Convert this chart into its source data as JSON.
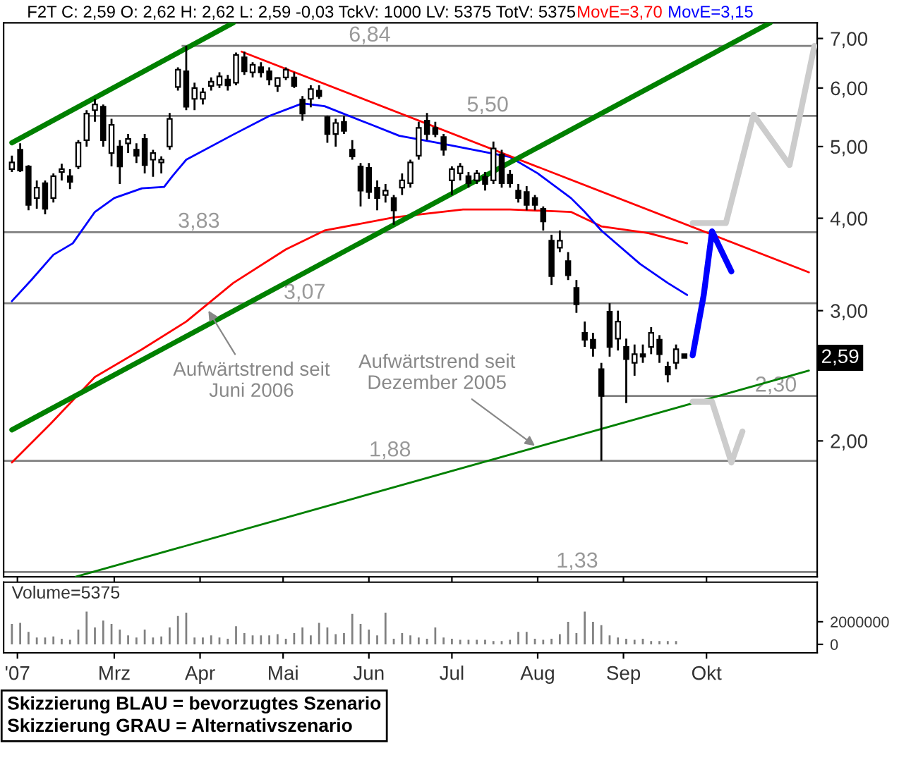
{
  "chart_data": [
    {
      "type": "candlestick",
      "title": "F2T C: 2,59 O: 2,62 H: 2,62 L: 2,59 -0,03 TckV: 1000 LV: 5375 TotV: 5375",
      "x": [
        "2007-01-23",
        "2007-01-26",
        "2007-01-29",
        "2007-02-01",
        "2007-02-04",
        "2007-02-07",
        "2007-02-10",
        "2007-02-13",
        "2007-02-16",
        "2007-02-19",
        "2007-02-22",
        "2007-02-25",
        "2007-02-28",
        "2007-03-03",
        "2007-03-06",
        "2007-03-09",
        "2007-03-12",
        "2007-03-15",
        "2007-03-18",
        "2007-03-21",
        "2007-03-24",
        "2007-03-27",
        "2007-03-30",
        "2007-04-02",
        "2007-04-05",
        "2007-04-08",
        "2007-04-11",
        "2007-04-14",
        "2007-04-17",
        "2007-04-20",
        "2007-04-23",
        "2007-04-26",
        "2007-04-29",
        "2007-05-02",
        "2007-05-05",
        "2007-05-08",
        "2007-05-11",
        "2007-05-14",
        "2007-05-17",
        "2007-05-20",
        "2007-05-23",
        "2007-05-26",
        "2007-05-29",
        "2007-06-01",
        "2007-06-04",
        "2007-06-07",
        "2007-06-10",
        "2007-06-13",
        "2007-06-16",
        "2007-06-19",
        "2007-06-22",
        "2007-06-25",
        "2007-06-28",
        "2007-07-01",
        "2007-07-04",
        "2007-07-07",
        "2007-07-10",
        "2007-07-13",
        "2007-07-16",
        "2007-07-19",
        "2007-07-22",
        "2007-07-25",
        "2007-07-28",
        "2007-07-31",
        "2007-08-03",
        "2007-08-06",
        "2007-08-09",
        "2007-08-12",
        "2007-08-15",
        "2007-08-18",
        "2007-08-21",
        "2007-08-24",
        "2007-08-27",
        "2007-08-30",
        "2007-09-02",
        "2007-09-05",
        "2007-09-08",
        "2007-09-11",
        "2007-09-14",
        "2007-09-17",
        "2007-09-20",
        "2007-09-23"
      ],
      "ohlc": [
        [
          4.66,
          4.86,
          4.62,
          4.76
        ],
        [
          4.95,
          5.05,
          4.62,
          4.64
        ],
        [
          4.7,
          4.72,
          4.1,
          4.17
        ],
        [
          4.26,
          4.5,
          4.12,
          4.4
        ],
        [
          4.46,
          4.5,
          4.05,
          4.12
        ],
        [
          4.26,
          4.6,
          4.2,
          4.56
        ],
        [
          4.62,
          4.74,
          4.5,
          4.66
        ],
        [
          4.56,
          4.66,
          4.38,
          4.48
        ],
        [
          4.7,
          5.1,
          4.66,
          5.06
        ],
        [
          5.1,
          5.6,
          5.0,
          5.54
        ],
        [
          5.6,
          5.8,
          5.4,
          5.7
        ],
        [
          5.66,
          5.7,
          5.0,
          5.1
        ],
        [
          4.9,
          5.45,
          4.7,
          5.35
        ],
        [
          5.0,
          5.1,
          4.45,
          4.7
        ],
        [
          5.05,
          5.2,
          4.9,
          5.12
        ],
        [
          4.95,
          5.05,
          4.75,
          4.86
        ],
        [
          5.12,
          5.2,
          4.6,
          4.72
        ],
        [
          4.8,
          4.95,
          4.55,
          4.9
        ],
        [
          4.76,
          4.85,
          4.6,
          4.8
        ],
        [
          5.0,
          5.55,
          4.95,
          5.45
        ],
        [
          6.02,
          6.4,
          5.95,
          6.35
        ],
        [
          6.32,
          6.84,
          5.6,
          5.66
        ],
        [
          5.8,
          6.1,
          5.6,
          6.0
        ],
        [
          5.8,
          6.0,
          5.7,
          5.92
        ],
        [
          6.04,
          6.2,
          5.95,
          6.12
        ],
        [
          6.06,
          6.3,
          6.0,
          6.22
        ],
        [
          6.16,
          6.25,
          5.95,
          6.05
        ],
        [
          6.1,
          6.7,
          6.05,
          6.65
        ],
        [
          6.6,
          6.72,
          6.25,
          6.32
        ],
        [
          6.3,
          6.5,
          6.2,
          6.45
        ],
        [
          6.4,
          6.5,
          6.2,
          6.3
        ],
        [
          6.32,
          6.4,
          6.05,
          6.16
        ],
        [
          6.04,
          6.2,
          5.93,
          6.19
        ],
        [
          6.2,
          6.4,
          6.15,
          6.35
        ],
        [
          6.2,
          6.3,
          6.0,
          6.04
        ],
        [
          5.79,
          5.85,
          5.42,
          5.54
        ],
        [
          5.8,
          6.05,
          5.65,
          5.98
        ],
        [
          5.95,
          6.05,
          5.8,
          5.85
        ],
        [
          5.48,
          5.5,
          5.06,
          5.2
        ],
        [
          5.2,
          5.45,
          5.0,
          5.38
        ],
        [
          5.4,
          5.5,
          5.2,
          5.25
        ],
        [
          4.95,
          5.1,
          4.8,
          4.85
        ],
        [
          4.7,
          4.75,
          4.15,
          4.36
        ],
        [
          4.68,
          4.75,
          4.25,
          4.34
        ],
        [
          4.4,
          4.5,
          4.1,
          4.26
        ],
        [
          4.3,
          4.45,
          4.2,
          4.36
        ],
        [
          4.26,
          4.3,
          3.92,
          4.1
        ],
        [
          4.4,
          4.6,
          4.3,
          4.5
        ],
        [
          4.46,
          4.8,
          4.4,
          4.76
        ],
        [
          4.86,
          5.4,
          4.8,
          5.3
        ],
        [
          5.42,
          5.55,
          5.1,
          5.2
        ],
        [
          5.3,
          5.4,
          5.15,
          5.2
        ],
        [
          5.15,
          5.2,
          4.86,
          4.95
        ],
        [
          4.5,
          4.7,
          4.3,
          4.66
        ],
        [
          4.6,
          4.75,
          4.5,
          4.7
        ],
        [
          4.56,
          4.62,
          4.4,
          4.46
        ],
        [
          4.5,
          4.65,
          4.45,
          4.6
        ],
        [
          4.55,
          4.62,
          4.36,
          4.45
        ],
        [
          4.5,
          5.08,
          4.45,
          4.97
        ],
        [
          4.88,
          4.95,
          4.4,
          4.46
        ],
        [
          4.58,
          4.65,
          4.4,
          4.46
        ],
        [
          4.36,
          4.45,
          4.2,
          4.26
        ],
        [
          4.34,
          4.42,
          4.1,
          4.17
        ],
        [
          4.26,
          4.3,
          4.1,
          4.17
        ],
        [
          4.12,
          4.15,
          3.85,
          3.96
        ],
        [
          3.73,
          3.8,
          3.25,
          3.34
        ],
        [
          3.65,
          3.85,
          3.6,
          3.73
        ],
        [
          3.5,
          3.6,
          3.3,
          3.35
        ],
        [
          3.22,
          3.3,
          2.98,
          3.06
        ],
        [
          2.8,
          2.9,
          2.68,
          2.74
        ],
        [
          2.74,
          2.8,
          2.6,
          2.67
        ],
        [
          2.5,
          2.55,
          1.88,
          2.3
        ],
        [
          2.99,
          3.07,
          2.6,
          2.68
        ],
        [
          2.75,
          3.0,
          2.65,
          2.9
        ],
        [
          2.68,
          2.75,
          2.25,
          2.58
        ],
        [
          2.55,
          2.7,
          2.45,
          2.62
        ],
        [
          2.62,
          2.7,
          2.55,
          2.6
        ],
        [
          2.68,
          2.85,
          2.62,
          2.8
        ],
        [
          2.74,
          2.78,
          2.55,
          2.62
        ],
        [
          2.52,
          2.56,
          2.4,
          2.46
        ],
        [
          2.55,
          2.7,
          2.5,
          2.66
        ],
        [
          2.62,
          2.62,
          2.59,
          2.59
        ]
      ],
      "series": [
        {
          "type": "line",
          "name": "MovE=3,70",
          "color": "#ff0000",
          "x": [
            "2007-01-23",
            "2007-02-06",
            "2007-02-22",
            "2007-03-11",
            "2007-03-27",
            "2007-04-13",
            "2007-05-02",
            "2007-05-16",
            "2007-06-10",
            "2007-07-05",
            "2007-07-22",
            "2007-08-13",
            "2007-08-24",
            "2007-09-10",
            "2007-09-24"
          ],
          "values": [
            1.87,
            2.11,
            2.44,
            2.66,
            2.9,
            3.27,
            3.63,
            3.85,
            4.01,
            4.11,
            4.11,
            4.08,
            3.9,
            3.82,
            3.7
          ]
        },
        {
          "type": "line",
          "name": "MovE=3,15",
          "color": "#0000ff",
          "x": [
            "2007-01-23",
            "2007-01-30",
            "2007-02-07",
            "2007-02-14",
            "2007-02-22",
            "2007-03-01",
            "2007-03-11",
            "2007-03-19",
            "2007-03-22",
            "2007-03-27",
            "2007-04-13",
            "2007-04-26",
            "2007-05-08",
            "2007-05-16",
            "2007-06-02",
            "2007-06-12",
            "2007-06-27",
            "2007-07-10",
            "2007-07-22",
            "2007-08-01",
            "2007-08-13",
            "2007-08-18",
            "2007-08-24",
            "2007-09-07",
            "2007-09-17",
            "2007-09-24"
          ],
          "values": [
            3.09,
            3.3,
            3.57,
            3.7,
            4.08,
            4.26,
            4.39,
            4.41,
            4.56,
            4.8,
            5.19,
            5.5,
            5.72,
            5.67,
            5.35,
            5.17,
            5.05,
            4.94,
            4.84,
            4.6,
            4.26,
            4.08,
            3.85,
            3.47,
            3.27,
            3.15
          ]
        },
        {
          "type": "line",
          "color": "#ff0000",
          "x": [
            "2007-04-16",
            "2007-11-07"
          ],
          "values": [
            6.72,
            3.38
          ]
        },
        {
          "type": "line",
          "color": "#008000",
          "x": [
            "2007-01-23",
            "2007-04-13"
          ],
          "values": [
            5.06,
            7.35
          ]
        },
        {
          "type": "line",
          "color": "#008000",
          "x": [
            "2007-01-23",
            "2007-10-24"
          ],
          "values": [
            2.07,
            7.35
          ]
        },
        {
          "type": "line",
          "color": "#008000",
          "x": [
            "2007-02-15",
            "2007-11-07"
          ],
          "values": [
            1.31,
            2.49
          ]
        },
        {
          "type": "line",
          "color": "#0000ff",
          "x": [
            "2007-09-26",
            "2007-09-30",
            "2007-10-03",
            "2007-10-10"
          ],
          "values": [
            2.61,
            3.15,
            3.84,
            3.39
          ]
        },
        {
          "type": "line",
          "color": "#cccccc",
          "x": [
            "2007-09-26",
            "2007-10-08",
            "2007-10-18",
            "2007-10-31",
            "2007-11-09"
          ],
          "values": [
            3.94,
            3.94,
            5.52,
            4.72,
            6.84
          ]
        },
        {
          "type": "line",
          "color": "#cccccc",
          "x": [
            "2007-09-26",
            "2007-10-03",
            "2007-10-10",
            "2007-10-14"
          ],
          "values": [
            2.26,
            2.26,
            1.87,
            2.06
          ]
        }
      ],
      "ref_lines": [
        {
          "axis": "y",
          "value": 6.84,
          "label": "6,84",
          "color": "#808080"
        },
        {
          "axis": "y",
          "value": 5.5,
          "label": "5,50",
          "color": "#808080"
        },
        {
          "axis": "y",
          "value": 3.83,
          "label": "3,83",
          "color": "#808080"
        },
        {
          "axis": "y",
          "value": 3.07,
          "label": "3,07",
          "color": "#808080"
        },
        {
          "axis": "y",
          "value": 2.3,
          "label": "2,30",
          "color": "#808080"
        },
        {
          "axis": "y",
          "value": 1.88,
          "label": "1,88",
          "color": "#808080"
        },
        {
          "axis": "y",
          "value": 1.33,
          "label": "1,33",
          "color": "#808080"
        }
      ],
      "annotations": [
        {
          "text": "Aufwärtstrend seit\nJuni 2006",
          "x": "2007-04-04",
          "y": 3.0
        },
        {
          "text": "Aufwärtstrend seit\nDezember 2005",
          "x": "2007-07-31",
          "y": 1.97
        },
        {
          "text": "2,59",
          "y": 2.59
        }
      ],
      "log": true,
      "xlim": [
        "2007-01-20",
        "2007-11-10"
      ],
      "ylim": [
        1.31,
        7.35
      ],
      "yticks": [
        {
          "value": 2,
          "label": "2,00"
        },
        {
          "value": 3,
          "label": "3,00"
        },
        {
          "value": 4,
          "label": "4,00"
        },
        {
          "value": 5,
          "label": "5,00"
        },
        {
          "value": 6,
          "label": "6,00"
        },
        {
          "value": 7,
          "label": "7,00"
        }
      ],
      "xticks": [
        {
          "value": "2007-01-25",
          "label": null
        },
        {
          "value": "2007-03-01",
          "label": null
        },
        {
          "value": "2007-04-01",
          "label": null
        },
        {
          "value": "2007-05-01",
          "label": null
        },
        {
          "value": "2007-06-01",
          "label": null
        },
        {
          "value": "2007-07-01",
          "label": null
        },
        {
          "value": "2007-08-01",
          "label": null
        },
        {
          "value": "2007-09-01",
          "label": null
        },
        {
          "value": "2007-10-01",
          "label": null
        }
      ],
      "tick_labels": "y",
      "legend": "top",
      "grid": false
    },
    {
      "type": "bar",
      "color": "#808080",
      "x": [
        "2007-01-23",
        "2007-01-26",
        "2007-01-29",
        "2007-02-01",
        "2007-02-04",
        "2007-02-07",
        "2007-02-10",
        "2007-02-13",
        "2007-02-16",
        "2007-02-19",
        "2007-02-22",
        "2007-02-25",
        "2007-02-28",
        "2007-03-03",
        "2007-03-06",
        "2007-03-09",
        "2007-03-12",
        "2007-03-15",
        "2007-03-18",
        "2007-03-21",
        "2007-03-24",
        "2007-03-27",
        "2007-03-30",
        "2007-04-02",
        "2007-04-05",
        "2007-04-08",
        "2007-04-11",
        "2007-04-14",
        "2007-04-17",
        "2007-04-20",
        "2007-04-23",
        "2007-04-26",
        "2007-04-29",
        "2007-05-02",
        "2007-05-05",
        "2007-05-08",
        "2007-05-11",
        "2007-05-14",
        "2007-05-17",
        "2007-05-20",
        "2007-05-23",
        "2007-05-26",
        "2007-05-29",
        "2007-06-01",
        "2007-06-04",
        "2007-06-07",
        "2007-06-10",
        "2007-06-13",
        "2007-06-16",
        "2007-06-19",
        "2007-06-22",
        "2007-06-25",
        "2007-06-28",
        "2007-07-01",
        "2007-07-04",
        "2007-07-07",
        "2007-07-10",
        "2007-07-13",
        "2007-07-16",
        "2007-07-19",
        "2007-07-22",
        "2007-07-25",
        "2007-07-28",
        "2007-07-31",
        "2007-08-03",
        "2007-08-06",
        "2007-08-09",
        "2007-08-12",
        "2007-08-15",
        "2007-08-18",
        "2007-08-21",
        "2007-08-24",
        "2007-08-27",
        "2007-08-30",
        "2007-09-02",
        "2007-09-05",
        "2007-09-08",
        "2007-09-11",
        "2007-09-14",
        "2007-09-17",
        "2007-09-20"
      ],
      "values": [
        1800000,
        1900000,
        1100000,
        600000,
        600000,
        700000,
        500000,
        400000,
        1300000,
        2900000,
        1500000,
        2100000,
        1800000,
        1300000,
        800000,
        600000,
        1300000,
        600000,
        700000,
        1500000,
        2500000,
        2800000,
        600000,
        600000,
        800000,
        600000,
        500000,
        1600000,
        1000000,
        800000,
        800000,
        800000,
        900000,
        500000,
        1000000,
        1500000,
        800000,
        1900000,
        1500000,
        900000,
        1000000,
        2700000,
        1800000,
        1300000,
        800000,
        2800000,
        500000,
        1000000,
        800000,
        600000,
        500000,
        1500000,
        600000,
        500000,
        400000,
        400000,
        400000,
        400000,
        300000,
        300000,
        400000,
        1100000,
        1100000,
        500000,
        400000,
        500000,
        900000,
        2000000,
        1000000,
        2900000,
        2000000,
        1700000,
        800000,
        600000,
        500000,
        400000,
        500000,
        300000,
        300000,
        300000,
        300000
      ],
      "xlim": [
        "2007-01-20",
        "2007-11-10"
      ],
      "ylim": [
        -750000,
        5500000
      ],
      "yticks": [
        0,
        2000000
      ],
      "xticks": [
        {
          "value": "2007-01-25",
          "label": "'07"
        },
        {
          "value": "2007-03-01",
          "label": "Mrz"
        },
        {
          "value": "2007-04-01",
          "label": "Apr"
        },
        {
          "value": "2007-05-01",
          "label": "Mai"
        },
        {
          "value": "2007-06-01",
          "label": "Jun"
        },
        {
          "value": "2007-07-01",
          "label": "Jul"
        },
        {
          "value": "2007-08-01",
          "label": "Aug"
        },
        {
          "value": "2007-09-01",
          "label": "Sep"
        },
        {
          "value": "2007-10-01",
          "label": "Okt"
        }
      ],
      "annotations": [
        "Volume=5375",
        "Skizzierung BLAU = bevorzugtes Szenario\nSkizzierung GRAU = Alternativszenario"
      ],
      "grid": false
    }
  ]
}
